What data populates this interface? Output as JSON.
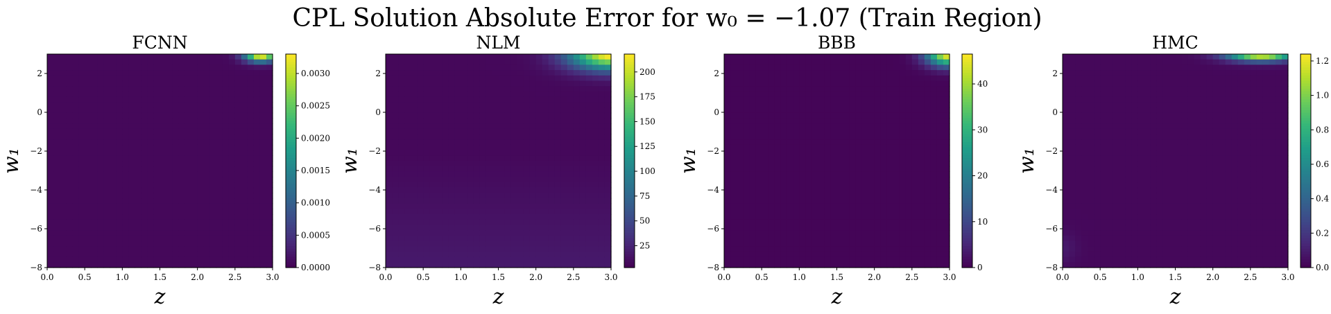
{
  "figure": {
    "title": "CPL Solution Absolute Error for w₀ = −1.07 (Train Region)"
  },
  "chart_data": [
    {
      "type": "heatmap",
      "title": "FCNN",
      "xlabel": "z",
      "ylabel": "w₁",
      "xlim": [
        0.0,
        3.0
      ],
      "ylim": [
        -8,
        3
      ],
      "x_ticks": [
        "0.0",
        "0.5",
        "1.0",
        "1.5",
        "2.0",
        "2.5",
        "3.0"
      ],
      "y_ticks": [
        "−8",
        "−6",
        "−4",
        "−2",
        "0",
        "2"
      ],
      "colorbar_ticks": [
        "0.0000",
        "0.0005",
        "0.0010",
        "0.0015",
        "0.0020",
        "0.0025",
        "0.0030"
      ],
      "colorbar_range": [
        0.0,
        0.0033
      ],
      "colormap": "viridis",
      "grid": false,
      "hotspot": {
        "z": 2.85,
        "w1": 2.9,
        "peak": 0.0033
      }
    },
    {
      "type": "heatmap",
      "title": "NLM",
      "xlabel": "z",
      "ylabel": "w₁",
      "xlim": [
        0.0,
        3.0
      ],
      "ylim": [
        -8,
        3
      ],
      "x_ticks": [
        "0.0",
        "0.5",
        "1.0",
        "1.5",
        "2.0",
        "2.5",
        "3.0"
      ],
      "y_ticks": [
        "−8",
        "−6",
        "−4",
        "−2",
        "0",
        "2"
      ],
      "colorbar_ticks": [
        "25",
        "50",
        "75",
        "100",
        "125",
        "150",
        "175",
        "200"
      ],
      "colorbar_range": [
        3,
        218
      ],
      "colormap": "viridis",
      "grid": false,
      "hotspot": {
        "z": 3.0,
        "w1": 3.0,
        "peak": 218
      }
    },
    {
      "type": "heatmap",
      "title": "BBB",
      "xlabel": "z",
      "ylabel": "w₁",
      "xlim": [
        0.0,
        3.0
      ],
      "ylim": [
        -8,
        3
      ],
      "x_ticks": [
        "0.0",
        "0.5",
        "1.0",
        "1.5",
        "2.0",
        "2.5",
        "3.0"
      ],
      "y_ticks": [
        "−8",
        "−6",
        "−4",
        "−2",
        "0",
        "2"
      ],
      "colorbar_ticks": [
        "0",
        "10",
        "20",
        "30",
        "40"
      ],
      "colorbar_range": [
        0,
        46.5
      ],
      "colormap": "viridis",
      "grid": false,
      "hotspot": {
        "z": 3.0,
        "w1": 3.0,
        "peak": 46.5
      }
    },
    {
      "type": "heatmap",
      "title": "HMC",
      "xlabel": "z",
      "ylabel": "w₁",
      "xlim": [
        0.0,
        3.0
      ],
      "ylim": [
        -8,
        3
      ],
      "x_ticks": [
        "0.0",
        "0.5",
        "1.0",
        "1.5",
        "2.0",
        "2.5",
        "3.0"
      ],
      "y_ticks": [
        "−8",
        "−6",
        "−4",
        "−2",
        "0",
        "2"
      ],
      "colorbar_ticks": [
        "0.0",
        "0.2",
        "0.4",
        "0.6",
        "0.8",
        "1.0",
        "1.2"
      ],
      "colorbar_range": [
        0.0,
        1.24
      ],
      "colormap": "viridis",
      "grid": false,
      "hotspot": {
        "z": 2.65,
        "w1": 3.0,
        "peak": 1.24
      }
    }
  ]
}
